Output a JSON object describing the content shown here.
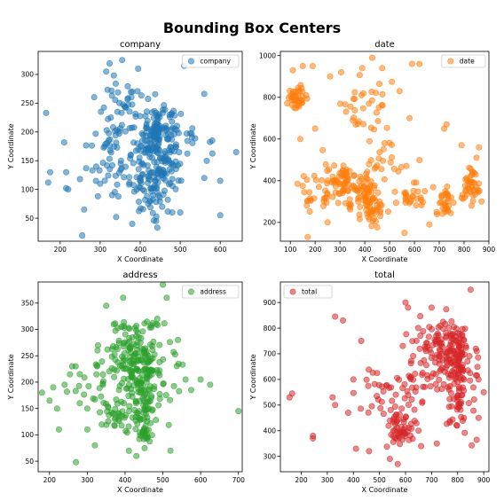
{
  "figure_title": "Bounding Box Centers",
  "chart_data": [
    {
      "type": "scatter",
      "title": "company",
      "xlabel": "X Coordinate",
      "ylabel": "Y Coordinate",
      "xlim": [
        145,
        655
      ],
      "ylim": [
        10,
        340
      ],
      "xticks": [
        200,
        300,
        400,
        500,
        600
      ],
      "yticks": [
        50,
        100,
        150,
        200,
        250,
        300
      ],
      "legend": "top-right",
      "series": [
        {
          "name": "company",
          "color": "#1f77b4",
          "clusters": [
            {
              "cx": 440,
              "cy": 190,
              "sx": 22,
              "sy": 30,
              "n": 110
            },
            {
              "cx": 430,
              "cy": 110,
              "sx": 28,
              "sy": 25,
              "n": 90
            },
            {
              "cx": 340,
              "cy": 200,
              "sx": 30,
              "sy": 40,
              "n": 55
            },
            {
              "cx": 500,
              "cy": 180,
              "sx": 35,
              "sy": 40,
              "n": 45
            },
            {
              "cx": 430,
              "cy": 230,
              "sx": 50,
              "sy": 25,
              "n": 40
            },
            {
              "cx": 330,
              "cy": 140,
              "sx": 40,
              "sy": 30,
              "n": 30
            }
          ],
          "points": [
            [
              165,
              233
            ],
            [
              175,
              130
            ],
            [
              170,
              112
            ],
            [
              210,
              182
            ],
            [
              215,
              130
            ],
            [
              220,
              100
            ],
            [
              260,
              65
            ],
            [
              255,
              20
            ],
            [
              300,
              110
            ],
            [
              315,
              305
            ],
            [
              330,
              90
            ],
            [
              340,
              52
            ],
            [
              355,
              325
            ],
            [
              380,
              40
            ],
            [
              395,
              310
            ],
            [
              480,
              60
            ],
            [
              500,
              60
            ],
            [
              510,
              315
            ],
            [
              600,
              55
            ],
            [
              640,
              165
            ],
            [
              560,
              120
            ],
            [
              440,
              45
            ],
            [
              420,
              75
            ],
            [
              455,
              70
            ],
            [
              600,
              115
            ]
          ]
        }
      ]
    },
    {
      "type": "scatter",
      "title": "date",
      "xlabel": "X Coordinate",
      "ylabel": "Y Coordinate",
      "xlim": [
        60,
        900
      ],
      "ylim": [
        110,
        1020
      ],
      "xticks": [
        100,
        200,
        300,
        400,
        500,
        600,
        700,
        800,
        900
      ],
      "yticks": [
        200,
        400,
        600,
        800,
        1000
      ],
      "legend": "top-right",
      "series": [
        {
          "name": "date",
          "color": "#ff7f0e",
          "clusters": [
            {
              "cx": 130,
              "cy": 800,
              "sx": 20,
              "sy": 25,
              "n": 40
            },
            {
              "cx": 300,
              "cy": 390,
              "sx": 30,
              "sy": 40,
              "n": 50
            },
            {
              "cx": 390,
              "cy": 360,
              "sx": 30,
              "sy": 50,
              "n": 55
            },
            {
              "cx": 430,
              "cy": 280,
              "sx": 30,
              "sy": 40,
              "n": 50
            },
            {
              "cx": 720,
              "cy": 300,
              "sx": 15,
              "sy": 40,
              "n": 30
            },
            {
              "cx": 820,
              "cy": 370,
              "sx": 20,
              "sy": 45,
              "n": 40
            },
            {
              "cx": 600,
              "cy": 320,
              "sx": 40,
              "sy": 30,
              "n": 25
            },
            {
              "cx": 400,
              "cy": 750,
              "sx": 50,
              "sy": 80,
              "n": 35
            },
            {
              "cx": 200,
              "cy": 350,
              "sx": 50,
              "sy": 60,
              "n": 30
            },
            {
              "cx": 500,
              "cy": 470,
              "sx": 50,
              "sy": 50,
              "n": 20
            }
          ],
          "points": [
            [
              110,
              930
            ],
            [
              150,
              950
            ],
            [
              190,
              950
            ],
            [
              260,
              900
            ],
            [
              305,
              920
            ],
            [
              390,
              940
            ],
            [
              430,
              990
            ],
            [
              470,
              940
            ],
            [
              590,
              960
            ],
            [
              620,
              960
            ],
            [
              720,
              650
            ],
            [
              730,
              670
            ],
            [
              850,
              510
            ],
            [
              860,
              560
            ],
            [
              790,
              570
            ],
            [
              170,
              130
            ],
            [
              250,
              200
            ],
            [
              660,
              190
            ],
            [
              690,
              250
            ],
            [
              560,
              150
            ],
            [
              830,
              280
            ],
            [
              870,
              300
            ],
            [
              540,
              830
            ],
            [
              580,
              700
            ],
            [
              480,
              580
            ],
            [
              140,
              600
            ],
            [
              200,
              650
            ]
          ]
        }
      ]
    },
    {
      "type": "scatter",
      "title": "address",
      "xlabel": "X Coordinate",
      "ylabel": "Y Coordinate",
      "xlim": [
        170,
        710
      ],
      "ylim": [
        30,
        390
      ],
      "xticks": [
        200,
        300,
        400,
        500,
        600,
        700
      ],
      "yticks": [
        50,
        100,
        150,
        200,
        250,
        300,
        350
      ],
      "legend": "top-right",
      "series": [
        {
          "name": "address",
          "color": "#2ca02c",
          "clusters": [
            {
              "cx": 445,
              "cy": 220,
              "sx": 25,
              "sy": 45,
              "n": 130
            },
            {
              "cx": 410,
              "cy": 260,
              "sx": 30,
              "sy": 30,
              "n": 60
            },
            {
              "cx": 440,
              "cy": 150,
              "sx": 25,
              "sy": 30,
              "n": 55
            },
            {
              "cx": 370,
              "cy": 135,
              "sx": 15,
              "sy": 15,
              "n": 25
            },
            {
              "cx": 455,
              "cy": 100,
              "sx": 10,
              "sy": 8,
              "n": 20
            },
            {
              "cx": 330,
              "cy": 210,
              "sx": 40,
              "sy": 30,
              "n": 30
            },
            {
              "cx": 500,
              "cy": 230,
              "sx": 30,
              "sy": 50,
              "n": 25
            }
          ],
          "points": [
            [
              180,
              180
            ],
            [
              200,
              165
            ],
            [
              210,
              190
            ],
            [
              220,
              150
            ],
            [
              225,
              110
            ],
            [
              240,
              195
            ],
            [
              260,
              230
            ],
            [
              270,
              48
            ],
            [
              280,
              215
            ],
            [
              300,
              110
            ],
            [
              320,
              80
            ],
            [
              350,
              345
            ],
            [
              370,
              310
            ],
            [
              395,
              360
            ],
            [
              500,
              385
            ],
            [
              510,
              360
            ],
            [
              540,
              280
            ],
            [
              560,
              205
            ],
            [
              600,
              205
            ],
            [
              625,
              195
            ],
            [
              700,
              145
            ],
            [
              575,
              185
            ],
            [
              520,
              70
            ],
            [
              430,
              60
            ],
            [
              300,
              150
            ],
            [
              280,
              160
            ]
          ]
        }
      ]
    },
    {
      "type": "scatter",
      "title": "total",
      "xlabel": "X Coordinate",
      "ylabel": "Y Coordinate",
      "xlim": [
        120,
        920
      ],
      "ylim": [
        240,
        980
      ],
      "xticks": [
        200,
        300,
        400,
        500,
        600,
        700,
        800,
        900
      ],
      "yticks": [
        300,
        400,
        500,
        600,
        700,
        800,
        900
      ],
      "legend": "top-left",
      "series": [
        {
          "name": "total",
          "color": "#d62728",
          "clusters": [
            {
              "cx": 780,
              "cy": 700,
              "sx": 40,
              "sy": 60,
              "n": 120
            },
            {
              "cx": 810,
              "cy": 560,
              "sx": 30,
              "sy": 90,
              "n": 70
            },
            {
              "cx": 580,
              "cy": 420,
              "sx": 30,
              "sy": 40,
              "n": 55
            },
            {
              "cx": 650,
              "cy": 600,
              "sx": 50,
              "sy": 60,
              "n": 40
            },
            {
              "cx": 700,
              "cy": 780,
              "sx": 50,
              "sy": 50,
              "n": 30
            },
            {
              "cx": 500,
              "cy": 560,
              "sx": 60,
              "sy": 60,
              "n": 25
            }
          ],
          "points": [
            [
              155,
              530
            ],
            [
              165,
              545
            ],
            [
              245,
              370
            ],
            [
              245,
              380
            ],
            [
              330,
              845
            ],
            [
              360,
              830
            ],
            [
              320,
              530
            ],
            [
              330,
              500
            ],
            [
              380,
              470
            ],
            [
              400,
              600
            ],
            [
              430,
              750
            ],
            [
              410,
              330
            ],
            [
              460,
              320
            ],
            [
              540,
              290
            ],
            [
              570,
              270
            ],
            [
              600,
              900
            ],
            [
              610,
              880
            ],
            [
              700,
              880
            ],
            [
              850,
              950
            ],
            [
              870,
              720
            ],
            [
              880,
              600
            ],
            [
              900,
              550
            ],
            [
              880,
              450
            ],
            [
              720,
              350
            ],
            [
              650,
              400
            ],
            [
              660,
              340
            ]
          ]
        }
      ]
    }
  ]
}
